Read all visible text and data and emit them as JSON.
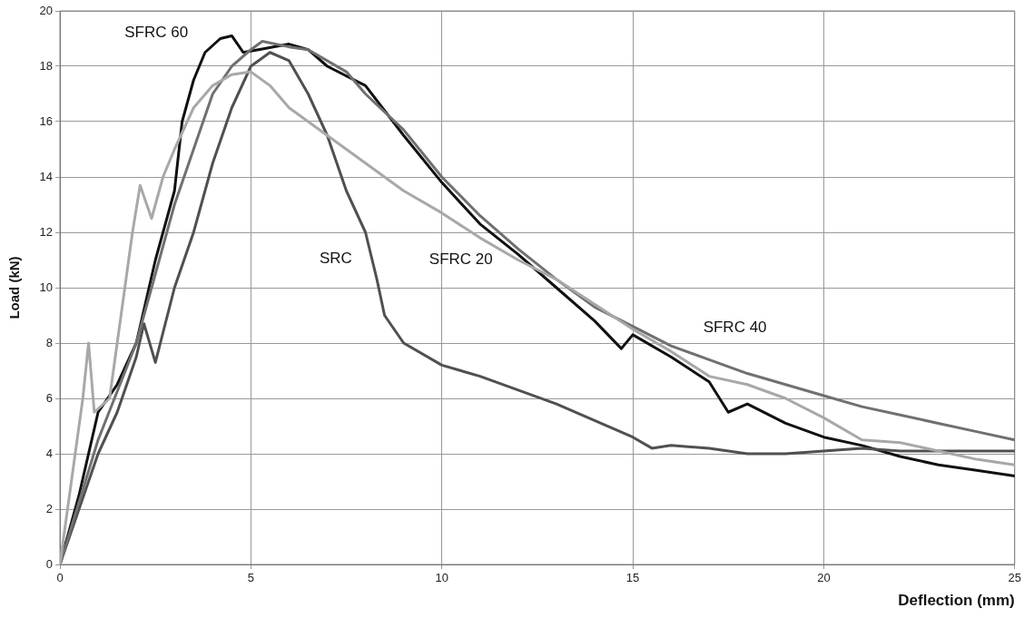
{
  "chart_data": {
    "type": "line",
    "xlabel": "Deflection (mm)",
    "ylabel": "Load (kN)",
    "xlim": [
      0,
      25
    ],
    "xticks": [
      0,
      5,
      10,
      15,
      20,
      25
    ],
    "ylim": [
      0,
      20
    ],
    "yticks": [
      0,
      2,
      4,
      6,
      8,
      10,
      12,
      14,
      16,
      18,
      20
    ],
    "grid": true,
    "legend": false,
    "marker": "none",
    "line_style": "solid",
    "series": [
      {
        "name": "SFRC 20",
        "color": "#a8a8a8",
        "x": [
          0,
          0.3,
          0.6,
          0.75,
          0.9,
          1.3,
          1.6,
          1.9,
          2.1,
          2.4,
          2.7,
          3,
          3.5,
          4,
          4.5,
          5,
          5.5,
          6,
          7,
          8,
          9,
          10,
          11,
          12,
          13,
          14,
          15,
          16,
          17,
          18,
          19,
          20,
          21,
          22,
          23,
          24,
          25
        ],
        "values": [
          0,
          3,
          6,
          8,
          5.5,
          6,
          9,
          12,
          13.7,
          12.5,
          14,
          15,
          16.5,
          17.3,
          17.7,
          17.8,
          17.3,
          16.5,
          15.5,
          14.5,
          13.5,
          12.7,
          11.8,
          11,
          10.3,
          9.4,
          8.5,
          7.7,
          6.8,
          6.5,
          6,
          5.3,
          4.5,
          4.4,
          4.1,
          3.8,
          3.6
        ]
      },
      {
        "name": "SFRC 40",
        "color": "#707070",
        "x": [
          0,
          1,
          2,
          2.5,
          3,
          3.5,
          4,
          4.5,
          5,
          5.3,
          6,
          6.5,
          7.5,
          8,
          9,
          10,
          11,
          12,
          13,
          14,
          15,
          16,
          17,
          18,
          19,
          20,
          21,
          22,
          23,
          24,
          25
        ],
        "values": [
          0,
          4.5,
          8,
          10.5,
          13,
          15,
          17,
          18,
          18.6,
          18.9,
          18.7,
          18.6,
          17.8,
          17,
          15.7,
          14,
          12.6,
          11.4,
          10.3,
          9.3,
          8.6,
          7.9,
          7.4,
          6.9,
          6.5,
          6.1,
          5.7,
          5.4,
          5.1,
          4.8,
          4.5
        ]
      },
      {
        "name": "SRC",
        "color": "#505050",
        "x": [
          0,
          0.5,
          1,
          1.5,
          2,
          2.2,
          2.5,
          3,
          3.5,
          4,
          4.5,
          5,
          5.5,
          6,
          6.5,
          7,
          7.5,
          8,
          8.3,
          8.5,
          9,
          10,
          11,
          12,
          13,
          14,
          15,
          15.5,
          16,
          17,
          18,
          19,
          20,
          21,
          22,
          23,
          24,
          25
        ],
        "values": [
          0,
          2,
          4,
          5.5,
          7.5,
          8.7,
          7.3,
          10,
          12,
          14.5,
          16.5,
          18,
          18.5,
          18.2,
          17,
          15.5,
          13.5,
          12,
          10.3,
          9,
          8,
          7.2,
          6.8,
          6.3,
          5.8,
          5.2,
          4.6,
          4.2,
          4.3,
          4.2,
          4,
          4,
          4.1,
          4.2,
          4.1,
          4.1,
          4.1,
          4.1
        ]
      },
      {
        "name": "SFRC 60",
        "color": "#111111",
        "x": [
          0,
          0.5,
          1,
          1.5,
          2,
          2.5,
          3,
          3.2,
          3.5,
          3.8,
          4.2,
          4.5,
          4.8,
          5.2,
          6,
          6.5,
          7,
          8,
          9,
          10,
          11,
          12,
          13,
          14,
          14.7,
          15,
          16,
          17,
          17.5,
          18,
          19,
          20,
          21,
          22,
          23,
          24,
          25
        ],
        "values": [
          0,
          2.5,
          5.5,
          6.5,
          8,
          11,
          13.5,
          16,
          17.5,
          18.5,
          19,
          19.1,
          18.5,
          18.6,
          18.8,
          18.6,
          18,
          17.3,
          15.5,
          13.8,
          12.3,
          11.2,
          10,
          8.8,
          7.8,
          8.3,
          7.5,
          6.6,
          5.5,
          5.8,
          5.1,
          4.6,
          4.3,
          3.9,
          3.6,
          3.4,
          3.2
        ]
      }
    ]
  }
}
